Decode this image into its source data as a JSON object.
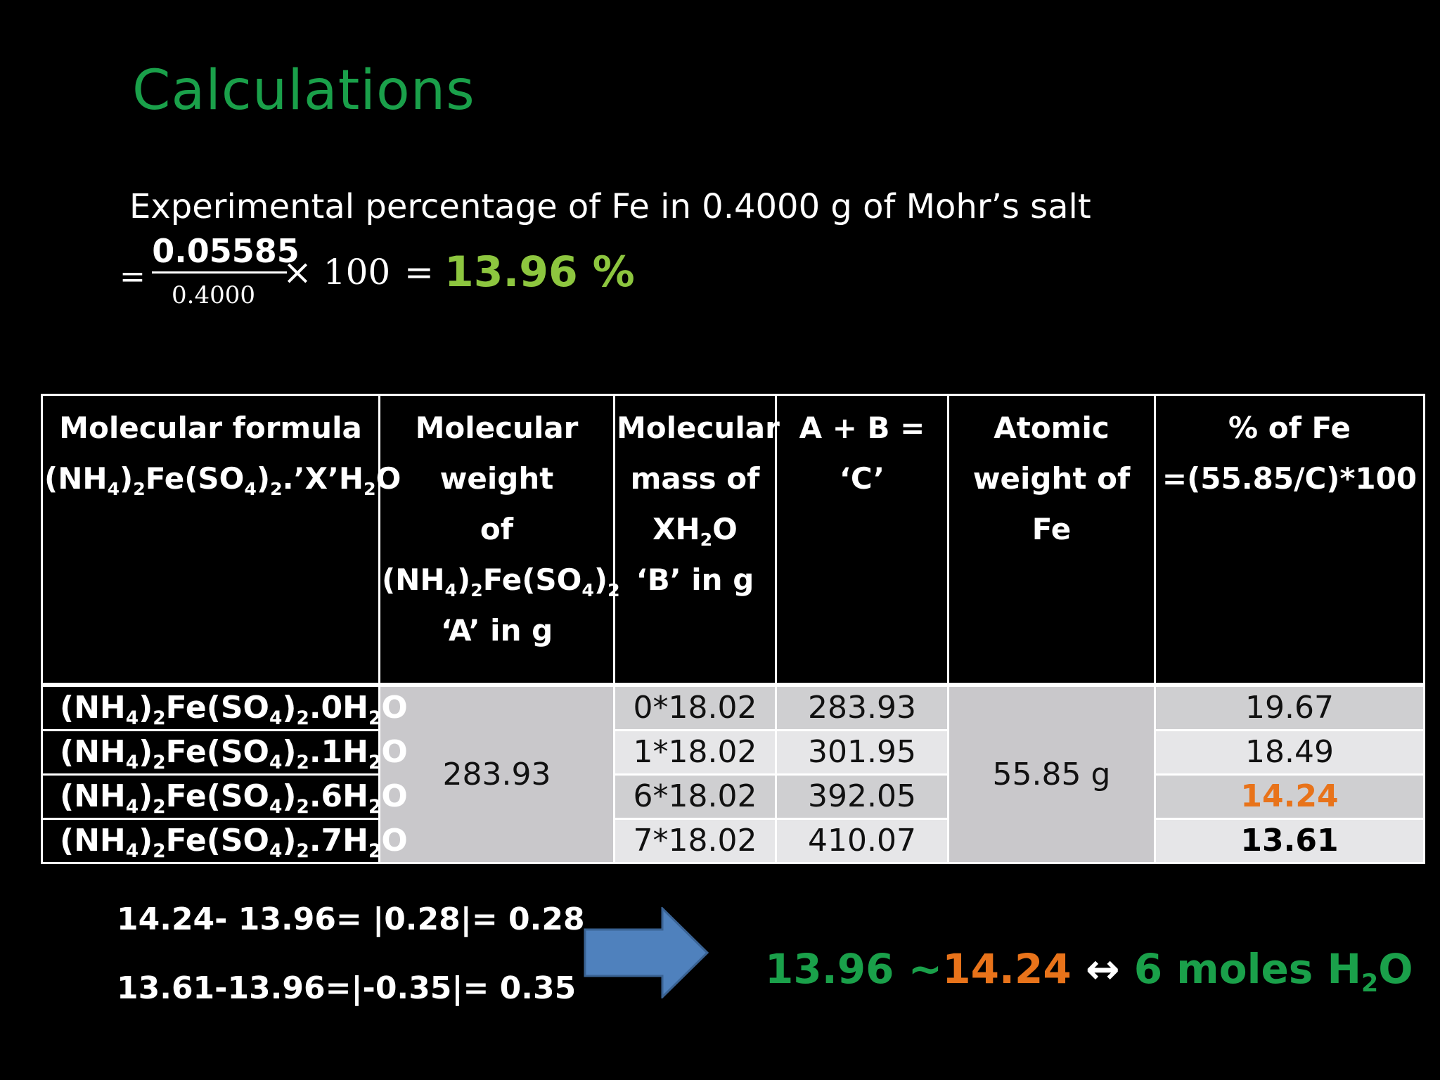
{
  "title": "Calculations",
  "experiment": {
    "description": "Experimental percentage of Fe in 0.4000 g of Mohr’s salt",
    "eq_prefix": "=",
    "numerator": "0.05585",
    "denominator": "0.4000",
    "times": "× 100",
    "equals": "=",
    "result": "13.96 %"
  },
  "table": {
    "headers": {
      "col1_line1": "Molecular formula",
      "col2_line1": "Molecular",
      "col2_line2": "weight",
      "col2_line3": "of",
      "col2_line5": "‘A’ in g",
      "col3_line1": "Molecular",
      "col3_line2": "mass of",
      "col3_line4": "‘B’ in g",
      "col4_line1": "A + B = ‘C’",
      "col5_line1": "Atomic",
      "col5_line2": "weight of Fe",
      "col6_line1": "% of Fe",
      "col6_line2": "=(55.85/C)*100"
    },
    "merged": {
      "molecular_weight": "283.93",
      "atomic_weight": "55.85 g"
    },
    "rows": [
      {
        "water": "0",
        "b": "0*18.02",
        "c": "283.93",
        "pct": "19.67"
      },
      {
        "water": "1",
        "b": "1*18.02",
        "c": "301.95",
        "pct": "18.49"
      },
      {
        "water": "6",
        "b": "6*18.02",
        "c": "392.05",
        "pct": "14.24"
      },
      {
        "water": "7",
        "b": "7*18.02",
        "c": "410.07",
        "pct": "13.61"
      }
    ]
  },
  "differences": {
    "line1": "14.24- 13.96= |0.28|= 0.28",
    "line2": "13.61-13.96=|-0.35|= 0.35"
  },
  "conclusion": {
    "part1": "13.96 ~",
    "part2": "14.24",
    "arrow": "↔",
    "part3": "6 moles H",
    "part3_sub": "2",
    "part3_end": "O"
  },
  "colors": {
    "title_green": "#1aa04a",
    "result_green": "#8dc63f",
    "highlight_orange": "#e8731a",
    "arrow_blue": "#4f81bd"
  }
}
